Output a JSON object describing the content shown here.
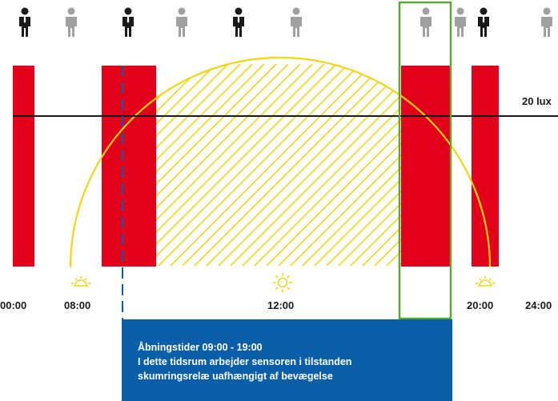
{
  "labels": {
    "lux": "20 lux",
    "times": [
      "00:00",
      "08:00",
      "12:00",
      "20:00",
      "24:00"
    ]
  },
  "info_box": {
    "line1": "Åbningstider 09:00 - 19:00",
    "line2": "I dette tidsrum arbejder sensoren i tilstanden",
    "line3": "skumringsrelæ uafhængigt af bevægelse"
  },
  "icons": {
    "person": "person-icon",
    "sun_rising": "sunrise-icon",
    "sun": "sun-icon",
    "sun_setting": "sunset-icon"
  },
  "colors": {
    "red_block": "#e2001a",
    "daylight_curve": "#f5d50f",
    "info_box": "#0a5fa8",
    "highlight_frame": "#5aaa32",
    "threshold_line": "#1a1a1a",
    "person_present": "#1a1a1a",
    "person_absent": "#a0a0a0"
  },
  "people": [
    {
      "present": true
    },
    {
      "present": false
    },
    {
      "present": true
    },
    {
      "present": false
    },
    {
      "present": true
    },
    {
      "present": false
    },
    {
      "present": false
    },
    {
      "present": false
    },
    {
      "present": true
    },
    {
      "present": false
    }
  ]
}
